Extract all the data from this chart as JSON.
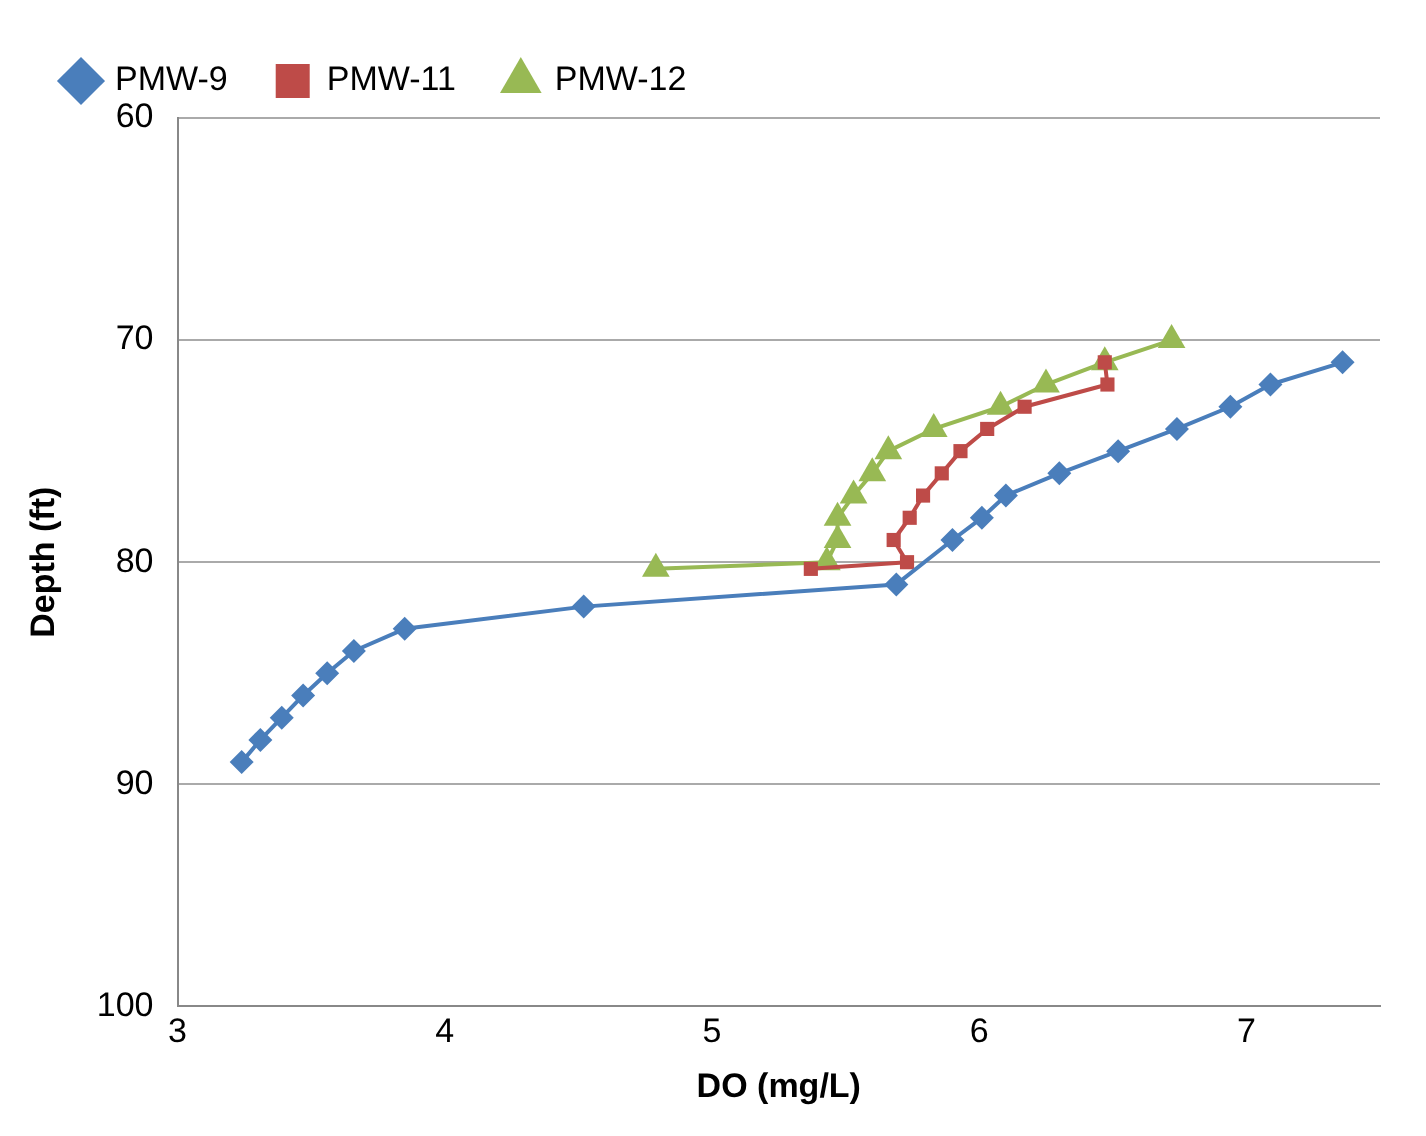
{
  "chart_data": {
    "type": "line",
    "xlabel": "DO (mg/L)",
    "ylabel": "Depth (ft)",
    "xlim": [
      3,
      7.5
    ],
    "xticks": [
      3,
      4,
      5,
      6,
      7
    ],
    "ylim": [
      100,
      60
    ],
    "yticks": [
      60,
      70,
      80,
      90,
      100
    ],
    "grid": "y",
    "legend": "top left",
    "series": [
      {
        "name": "PMW-9",
        "color": "#4a7ebb",
        "marker": "diamond",
        "x": [
          7.36,
          7.09,
          6.94,
          6.74,
          6.52,
          6.3,
          6.1,
          6.01,
          5.9,
          5.69,
          4.52,
          3.85,
          3.66,
          3.56,
          3.47,
          3.39,
          3.31,
          3.24
        ],
        "values": [
          71,
          72,
          73,
          74,
          75,
          76,
          77,
          78,
          79,
          81,
          82,
          83,
          84,
          85,
          86,
          87,
          88,
          89
        ]
      },
      {
        "name": "PMW-11",
        "color": "#be4b48",
        "marker": "square",
        "x": [
          6.47,
          6.48,
          6.17,
          6.03,
          5.93,
          5.86,
          5.79,
          5.74,
          5.68,
          5.73,
          5.37
        ],
        "values": [
          71,
          72,
          73,
          74,
          75,
          76,
          77,
          78,
          79,
          80,
          80.3
        ]
      },
      {
        "name": "PMW-12",
        "color": "#98b954",
        "marker": "triangle",
        "x": [
          6.72,
          6.47,
          6.25,
          6.08,
          5.83,
          5.66,
          5.6,
          5.53,
          5.47,
          5.47,
          5.43,
          4.79
        ],
        "values": [
          70,
          71,
          72,
          73,
          74,
          75,
          76,
          77,
          78,
          79,
          80,
          80.3
        ]
      }
    ]
  }
}
